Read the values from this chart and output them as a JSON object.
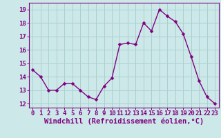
{
  "x": [
    0,
    1,
    2,
    3,
    4,
    5,
    6,
    7,
    8,
    9,
    10,
    11,
    12,
    13,
    14,
    15,
    16,
    17,
    18,
    19,
    20,
    21,
    22,
    23
  ],
  "y": [
    14.5,
    14.0,
    13.0,
    13.0,
    13.5,
    13.5,
    13.0,
    12.5,
    12.3,
    13.3,
    13.9,
    16.4,
    16.5,
    16.4,
    18.0,
    17.4,
    19.0,
    18.5,
    18.1,
    17.2,
    15.5,
    13.7,
    12.5,
    12.0
  ],
  "line_color": "#800080",
  "marker_color": "#800080",
  "bg_color": "#cce8e8",
  "grid_color": "#aad0d0",
  "xlabel": "Windchill (Refroidissement éolien,°C)",
  "xlim": [
    -0.5,
    23.5
  ],
  "ylim": [
    11.7,
    19.5
  ],
  "yticks": [
    12,
    13,
    14,
    15,
    16,
    17,
    18,
    19
  ],
  "xticks": [
    0,
    1,
    2,
    3,
    4,
    5,
    6,
    7,
    8,
    9,
    10,
    11,
    12,
    13,
    14,
    15,
    16,
    17,
    18,
    19,
    20,
    21,
    22,
    23
  ],
  "tick_label_fontsize": 6.5,
  "xlabel_fontsize": 7.5,
  "marker_size": 2.5,
  "line_width": 1.0
}
